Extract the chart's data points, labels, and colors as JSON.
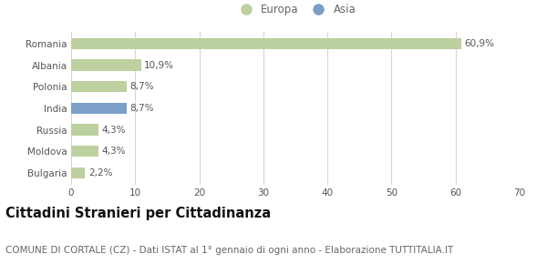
{
  "categories": [
    "Romania",
    "Albania",
    "Polonia",
    "India",
    "Russia",
    "Moldova",
    "Bulgaria"
  ],
  "values": [
    60.9,
    10.9,
    8.7,
    8.7,
    4.3,
    4.3,
    2.2
  ],
  "labels": [
    "60,9%",
    "10,9%",
    "8,7%",
    "8,7%",
    "4,3%",
    "4,3%",
    "2,2%"
  ],
  "bar_colors": [
    "#bdd09f",
    "#bdd09f",
    "#bdd09f",
    "#7b9fc7",
    "#bdd09f",
    "#bdd09f",
    "#bdd09f"
  ],
  "legend_entries": [
    {
      "label": "Europa",
      "color": "#bdd09f"
    },
    {
      "label": "Asia",
      "color": "#7b9fc7"
    }
  ],
  "xlim": [
    0,
    70
  ],
  "xticks": [
    0,
    10,
    20,
    30,
    40,
    50,
    60,
    70
  ],
  "title": "Cittadini Stranieri per Cittadinanza",
  "subtitle": "COMUNE DI CORTALE (CZ) - Dati ISTAT al 1° gennaio di ogni anno - Elaborazione TUTTITALIA.IT",
  "background_color": "#ffffff",
  "grid_color": "#d5d5d5",
  "bar_height": 0.52,
  "title_fontsize": 10.5,
  "subtitle_fontsize": 7.5,
  "label_fontsize": 7.5,
  "tick_fontsize": 7.5,
  "legend_fontsize": 8.5
}
